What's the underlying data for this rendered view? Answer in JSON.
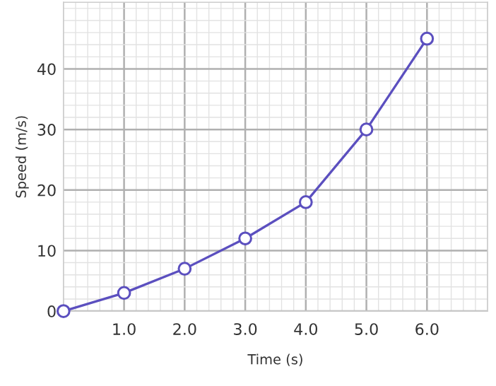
{
  "chart_data": {
    "type": "line",
    "xlabel": "Time (s)",
    "ylabel": "Speed (m/s)",
    "x": [
      0,
      1,
      2,
      3,
      4,
      5,
      6
    ],
    "series": [
      {
        "color": "#5b4fbf",
        "values": [
          0,
          3,
          7,
          12,
          18,
          30,
          45
        ]
      }
    ],
    "xlim": [
      0,
      7
    ],
    "ylim": [
      0,
      51
    ],
    "xticks": [
      {
        "value": 1,
        "label": "1.0"
      },
      {
        "value": 2,
        "label": "2.0"
      },
      {
        "value": 3,
        "label": "3.0"
      },
      {
        "value": 4,
        "label": "4.0"
      },
      {
        "value": 5,
        "label": "5.0"
      },
      {
        "value": 6,
        "label": "6.0"
      }
    ],
    "yticks": [
      0,
      10,
      20,
      30,
      40
    ],
    "grid": true,
    "marker": "circle",
    "line_style": "solid"
  }
}
